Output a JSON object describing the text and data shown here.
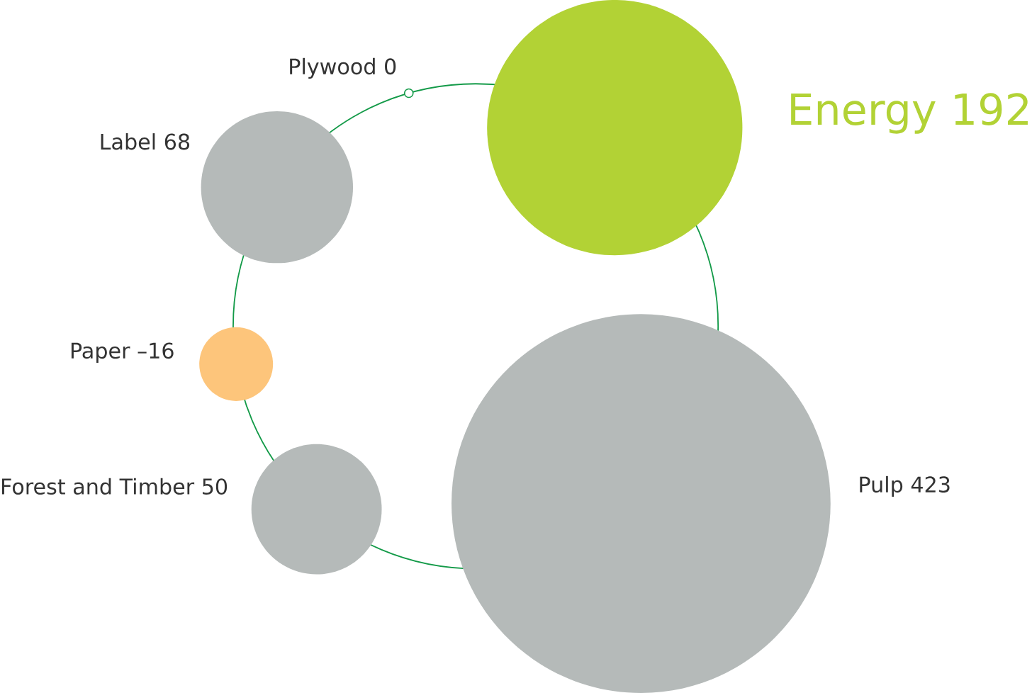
{
  "chart_data": {
    "type": "other",
    "categories": [
      "Plywood",
      "Energy",
      "Pulp",
      "Forest and Timber",
      "Paper",
      "Label"
    ],
    "values": [
      0,
      192,
      423,
      50,
      -16,
      68
    ],
    "colors": [
      "#ffffff",
      "#b2d235",
      "#b5bab9",
      "#b5bab9",
      "#fdc57b",
      "#b5bab9"
    ],
    "value_labels": [
      "0",
      "192",
      "423",
      "50",
      "–16",
      "68"
    ]
  }
}
